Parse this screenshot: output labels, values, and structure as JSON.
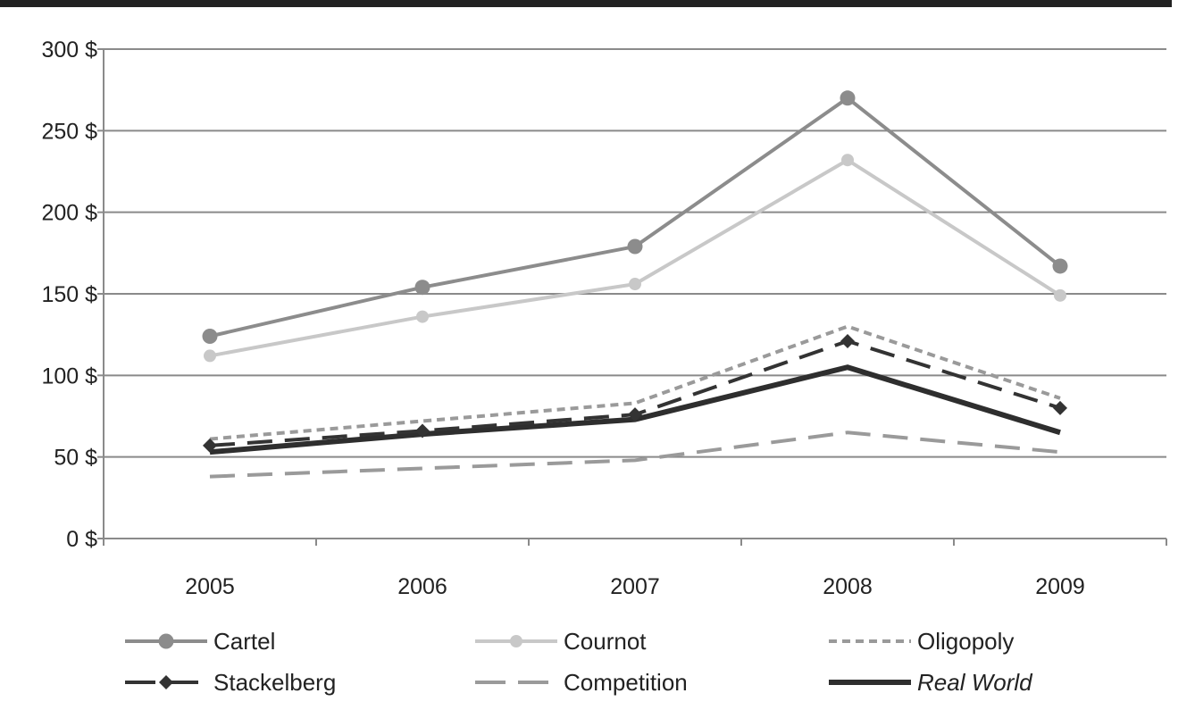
{
  "chart_data": {
    "type": "line",
    "title": "",
    "xlabel": "",
    "ylabel": "",
    "categories": [
      "2005",
      "2006",
      "2007",
      "2008",
      "2009"
    ],
    "ylim": [
      0,
      300
    ],
    "yticks": [
      0,
      50,
      100,
      150,
      200,
      250,
      300
    ],
    "ytick_labels": [
      "0 $",
      "50 $",
      "100 $",
      "150 $",
      "200 $",
      "250 $",
      "300 $"
    ],
    "grid": true,
    "legend_position": "bottom",
    "series": [
      {
        "name": "Cartel",
        "values": [
          124,
          154,
          179,
          270,
          167
        ],
        "color": "#8c8c8c",
        "style": "solid",
        "marker": "circle"
      },
      {
        "name": "Cournot",
        "values": [
          112,
          136,
          156,
          232,
          149
        ],
        "color": "#c8c8c8",
        "style": "solid",
        "marker": "circle"
      },
      {
        "name": "Oligopoly",
        "values": [
          61,
          72,
          83,
          130,
          86
        ],
        "color": "#9a9a9a",
        "style": "short-dash",
        "marker": "none"
      },
      {
        "name": "Stackelberg",
        "values": [
          57,
          66,
          76,
          121,
          80
        ],
        "color": "#333333",
        "style": "long-dash",
        "marker": "diamond"
      },
      {
        "name": "Competition",
        "values": [
          38,
          43,
          48,
          65,
          53
        ],
        "color": "#9a9a9a",
        "style": "long-dash",
        "marker": "none"
      },
      {
        "name": "Real World",
        "values": [
          53,
          64,
          73,
          105,
          65
        ],
        "color": "#2e2e2e",
        "style": "solid-thick",
        "marker": "none",
        "italic_label": true
      }
    ]
  }
}
